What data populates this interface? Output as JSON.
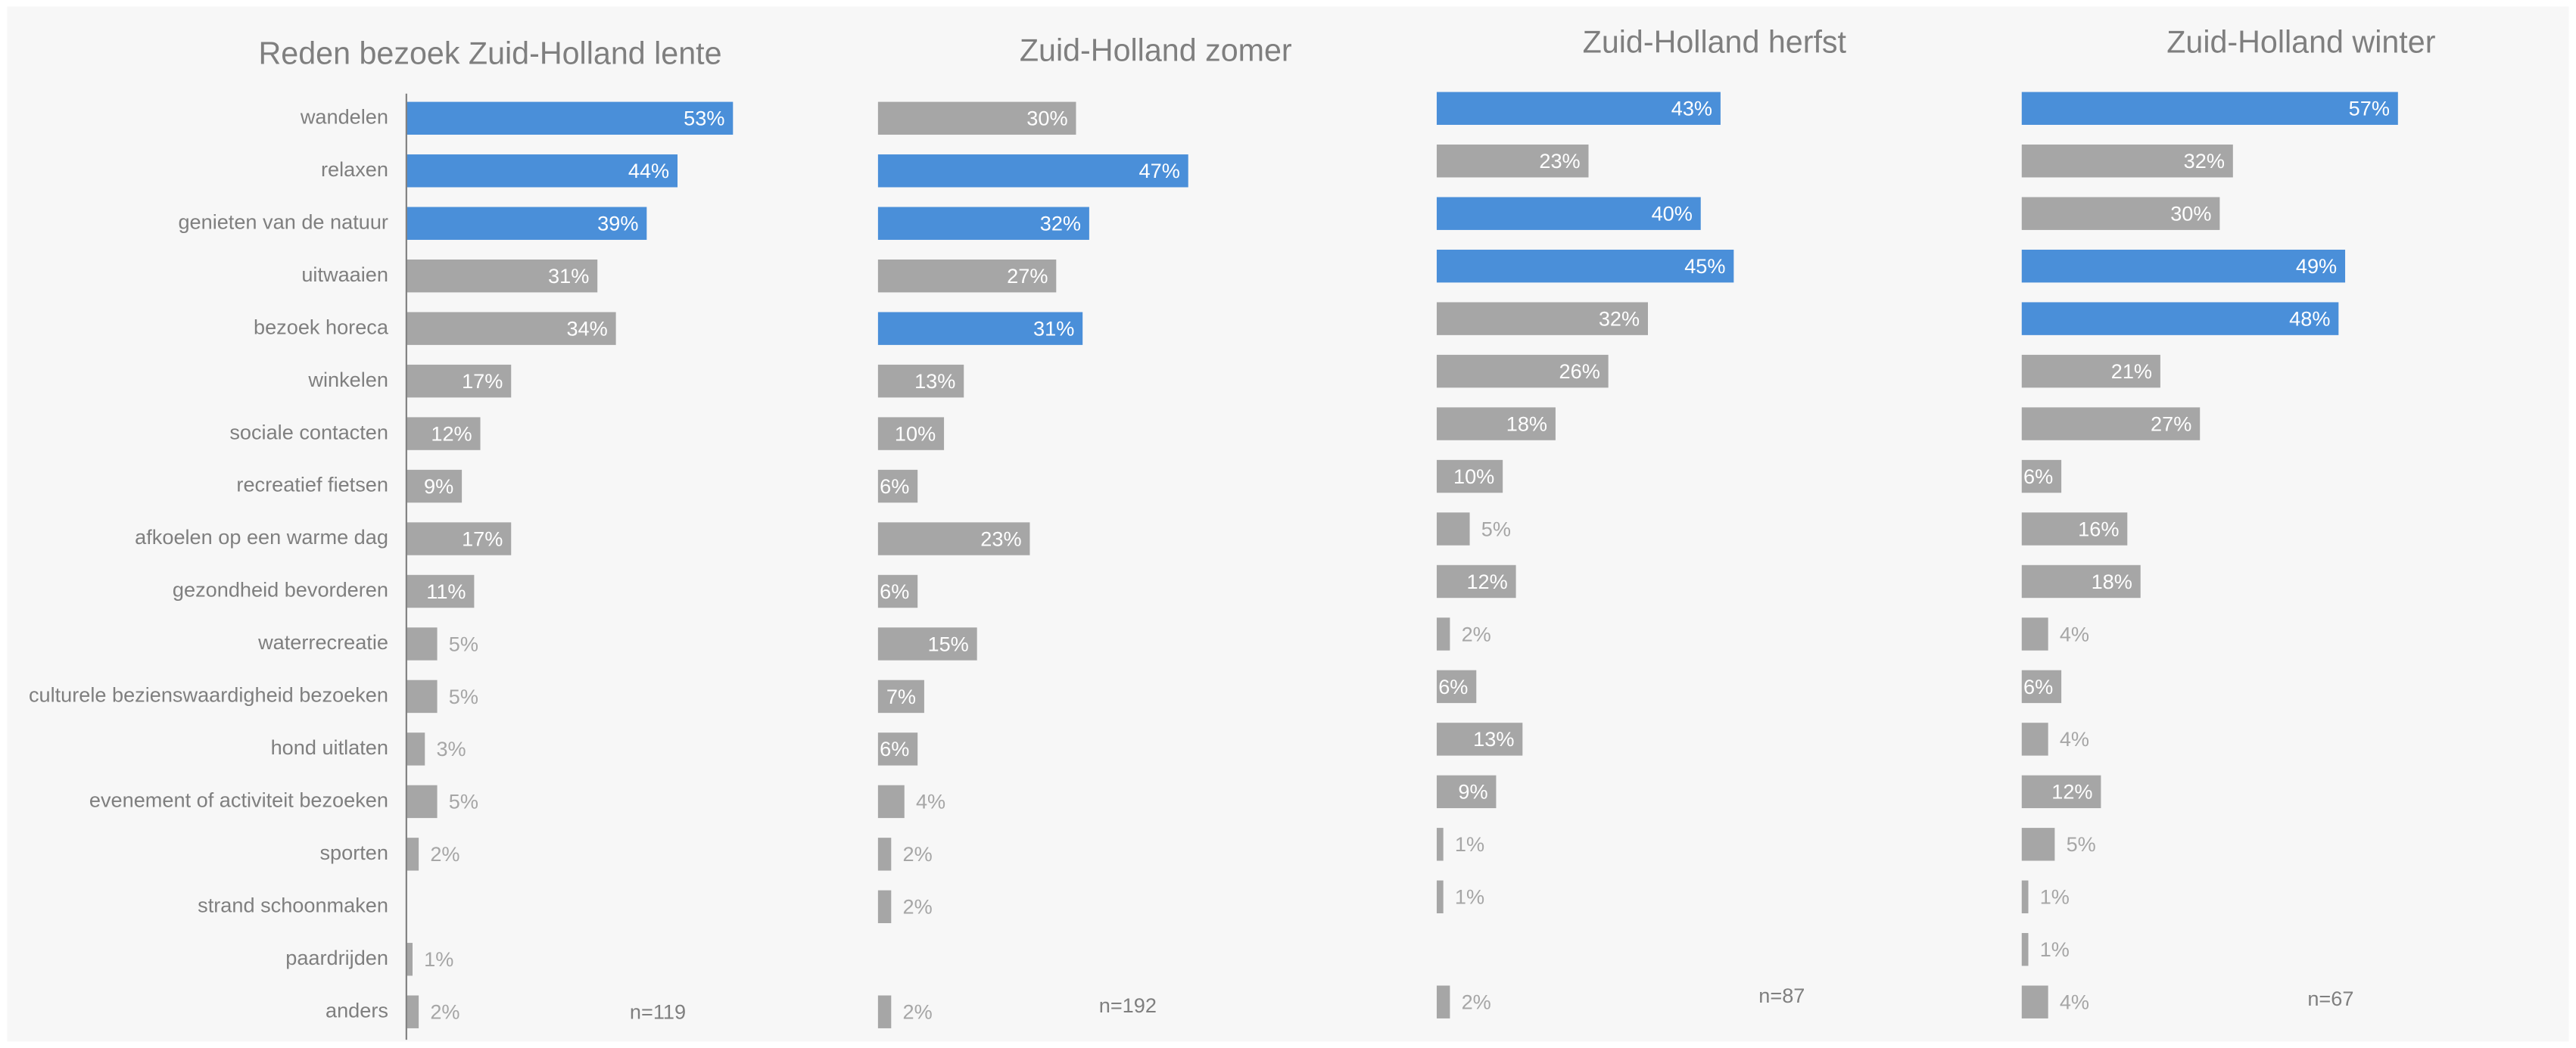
{
  "chart_data": [
    {
      "type": "bar",
      "title": "Reden bezoek Zuid-Holland lente",
      "note": "n=119",
      "categories": [
        "wandelen",
        "relaxen",
        "genieten van de natuur",
        "uitwaaien",
        "bezoek horeca",
        "winkelen",
        "sociale contacten",
        "recreatief fietsen",
        "afkoelen op een warme dag",
        "gezondheid bevorderen",
        "waterrecreatie",
        "culturele bezienswaardigheid bezoeken",
        "hond uitlaten",
        "evenement of activiteit bezoeken",
        "sporten",
        "strand schoonmaken",
        "paardrijden",
        "anders"
      ],
      "values": [
        53,
        44,
        39,
        31,
        34,
        17,
        12,
        9,
        17,
        11,
        5,
        5,
        3,
        5,
        2,
        null,
        1,
        2
      ],
      "value_labels": [
        "53%",
        "44%",
        "39%",
        "31%",
        "34%",
        "17%",
        "12%",
        "9%",
        "17%",
        "11%",
        "5%",
        "5%",
        "3%",
        "5%",
        "2%",
        null,
        "1%",
        "2%"
      ],
      "colors": [
        "#4a8fd9",
        "#4a8fd9",
        "#4a8fd9",
        "#a6a6a6",
        "#a6a6a6",
        "#a6a6a6",
        "#a6a6a6",
        "#a6a6a6",
        "#a6a6a6",
        "#a6a6a6",
        "#a6a6a6",
        "#a6a6a6",
        "#a6a6a6",
        "#a6a6a6",
        "#a6a6a6",
        "#a6a6a6",
        "#a6a6a6",
        "#a6a6a6"
      ],
      "xlim": [
        0,
        60
      ]
    },
    {
      "type": "bar",
      "title": "Zuid-Holland zomer",
      "note": "n=192",
      "values": [
        30,
        47,
        32,
        27,
        31,
        13,
        10,
        6,
        23,
        6,
        15,
        7,
        6,
        4,
        2,
        2,
        null,
        2
      ],
      "value_labels": [
        "30%",
        "47%",
        "32%",
        "27%",
        "31%",
        "13%",
        "10%",
        "6%",
        "23%",
        "6%",
        "15%",
        "7%",
        "6%",
        "4%",
        "2%",
        "2%",
        null,
        "2%"
      ],
      "colors": [
        "#a6a6a6",
        "#4a8fd9",
        "#4a8fd9",
        "#a6a6a6",
        "#4a8fd9",
        "#a6a6a6",
        "#a6a6a6",
        "#a6a6a6",
        "#a6a6a6",
        "#a6a6a6",
        "#a6a6a6",
        "#a6a6a6",
        "#a6a6a6",
        "#a6a6a6",
        "#a6a6a6",
        "#a6a6a6",
        "#a6a6a6",
        "#a6a6a6"
      ],
      "xlim": [
        0,
        60
      ]
    },
    {
      "type": "bar",
      "title": "Zuid-Holland herfst",
      "note": "n=87",
      "values": [
        43,
        23,
        40,
        45,
        32,
        26,
        18,
        10,
        5,
        12,
        2,
        6,
        13,
        9,
        1,
        1,
        null,
        2
      ],
      "value_labels": [
        "43%",
        "23%",
        "40%",
        "45%",
        "32%",
        "26%",
        "18%",
        "10%",
        "5%",
        "12%",
        "2%",
        "6%",
        "13%",
        "9%",
        "1%",
        "1%",
        null,
        "2%"
      ],
      "colors": [
        "#4a8fd9",
        "#a6a6a6",
        "#4a8fd9",
        "#4a8fd9",
        "#a6a6a6",
        "#a6a6a6",
        "#a6a6a6",
        "#a6a6a6",
        "#a6a6a6",
        "#a6a6a6",
        "#a6a6a6",
        "#a6a6a6",
        "#a6a6a6",
        "#a6a6a6",
        "#a6a6a6",
        "#a6a6a6",
        "#a6a6a6",
        "#a6a6a6"
      ],
      "xlim": [
        0,
        60
      ]
    },
    {
      "type": "bar",
      "title": "Zuid-Holland winter",
      "note": "n=67",
      "values": [
        57,
        32,
        30,
        49,
        48,
        21,
        27,
        6,
        16,
        18,
        4,
        6,
        4,
        12,
        5,
        1,
        1,
        4
      ],
      "value_labels": [
        "57%",
        "32%",
        "30%",
        "49%",
        "48%",
        "21%",
        "27%",
        "6%",
        "16%",
        "18%",
        "4%",
        "6%",
        "4%",
        "12%",
        "5%",
        "1%",
        "1%",
        "4%"
      ],
      "colors": [
        "#4a8fd9",
        "#a6a6a6",
        "#a6a6a6",
        "#4a8fd9",
        "#4a8fd9",
        "#a6a6a6",
        "#a6a6a6",
        "#a6a6a6",
        "#a6a6a6",
        "#a6a6a6",
        "#a6a6a6",
        "#a6a6a6",
        "#a6a6a6",
        "#a6a6a6",
        "#a6a6a6",
        "#a6a6a6",
        "#a6a6a6",
        "#a6a6a6"
      ],
      "xlim": [
        0,
        60
      ]
    }
  ]
}
